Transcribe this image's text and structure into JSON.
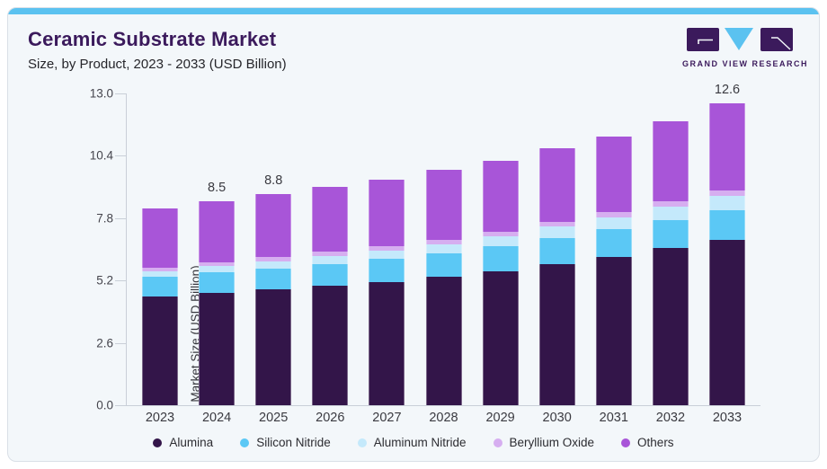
{
  "header": {
    "title": "Ceramic Substrate Market",
    "subtitle": "Size, by Product, 2023 - 2033 (USD Billion)",
    "brand": "GRAND VIEW RESEARCH"
  },
  "colors": {
    "accent_top": "#5bc2f0",
    "card_bg": "#f3f7fa",
    "card_border": "#d9dfe6",
    "brand_purple": "#3b1a5c",
    "axis_line": "#c9cfd8",
    "tick_text": "#45454d",
    "label_text": "#3a3a40"
  },
  "chart_data": {
    "type": "bar",
    "stacked": true,
    "title": "Ceramic Substrate Market Size, by Product, 2023 - 2033 (USD Billion)",
    "categories": [
      "2023",
      "2024",
      "2025",
      "2026",
      "2027",
      "2028",
      "2029",
      "2030",
      "2031",
      "2032",
      "2033"
    ],
    "series": [
      {
        "name": "Alumina",
        "color": "#331549",
        "values": [
          4.55,
          4.7,
          4.85,
          5.0,
          5.15,
          5.35,
          5.6,
          5.9,
          6.2,
          6.55,
          6.9
        ]
      },
      {
        "name": "Silicon Nitride",
        "color": "#5bc8f5",
        "values": [
          0.8,
          0.83,
          0.86,
          0.9,
          0.94,
          0.98,
          1.03,
          1.08,
          1.13,
          1.18,
          1.24
        ]
      },
      {
        "name": "Aluminum Nitride",
        "color": "#c4e9fb",
        "values": [
          0.25,
          0.27,
          0.3,
          0.33,
          0.36,
          0.39,
          0.42,
          0.46,
          0.5,
          0.54,
          0.58
        ]
      },
      {
        "name": "Beryllium Oxide",
        "color": "#d6aef0",
        "values": [
          0.15,
          0.16,
          0.16,
          0.17,
          0.17,
          0.18,
          0.19,
          0.2,
          0.21,
          0.22,
          0.23
        ]
      },
      {
        "name": "Others",
        "color": "#a855d8",
        "values": [
          2.45,
          2.54,
          2.63,
          2.7,
          2.78,
          2.9,
          2.96,
          3.06,
          3.16,
          3.36,
          3.65
        ]
      }
    ],
    "totals": [
      8.2,
      8.5,
      8.8,
      9.1,
      9.4,
      9.8,
      10.2,
      10.7,
      11.2,
      11.85,
      12.6
    ],
    "bar_value_labels": [
      null,
      "8.5",
      "8.8",
      null,
      null,
      null,
      null,
      null,
      null,
      null,
      "12.6"
    ],
    "xlabel": "",
    "ylabel": "Market Size (USD Billion)",
    "ylim": [
      0,
      13
    ],
    "yticks": [
      0,
      2.6,
      5.2,
      7.8,
      10.4,
      13.0
    ],
    "ytick_labels": [
      "0.0",
      "2.6",
      "5.2",
      "7.8",
      "10.4",
      "13.0"
    ],
    "grid": false,
    "legend_position": "bottom"
  }
}
